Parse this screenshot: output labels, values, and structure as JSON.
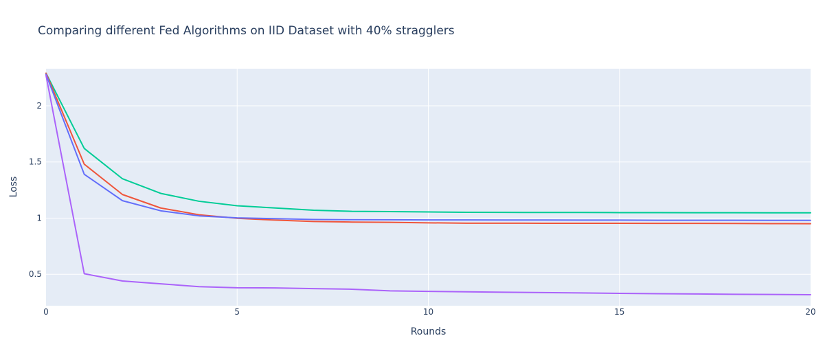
{
  "chart_data": {
    "type": "line",
    "title": "Comparing different Fed Algorithms on IID Dataset with 40% stragglers",
    "xlabel": "Rounds",
    "ylabel": "Loss",
    "xlim": [
      0,
      20
    ],
    "ylim": [
      0.22,
      2.33
    ],
    "x_ticks": [
      0,
      5,
      10,
      15,
      20
    ],
    "y_ticks": [
      0.5,
      1,
      1.5,
      2
    ],
    "x_tick_labels": [
      "0",
      "5",
      "10",
      "15",
      "20"
    ],
    "y_tick_labels": [
      "0.5",
      "1",
      "1.5",
      "2"
    ],
    "grid": true,
    "legend": "none",
    "x": [
      0,
      1,
      2,
      3,
      4,
      5,
      6,
      7,
      8,
      9,
      10,
      11,
      12,
      13,
      14,
      15,
      16,
      17,
      18,
      19,
      20
    ],
    "series": [
      {
        "color": "#00cc96",
        "values": [
          2.29,
          1.62,
          1.35,
          1.22,
          1.15,
          1.11,
          1.09,
          1.07,
          1.06,
          1.058,
          1.055,
          1.052,
          1.051,
          1.05,
          1.05,
          1.049,
          1.049,
          1.048,
          1.048,
          1.047,
          1.047
        ]
      },
      {
        "color": "#ef553b",
        "values": [
          2.29,
          1.48,
          1.21,
          1.09,
          1.03,
          0.998,
          0.982,
          0.97,
          0.965,
          0.962,
          0.958,
          0.955,
          0.955,
          0.954,
          0.954,
          0.954,
          0.953,
          0.953,
          0.952,
          0.951,
          0.95
        ]
      },
      {
        "color": "#636efa",
        "values": [
          2.28,
          1.39,
          1.155,
          1.065,
          1.02,
          1.002,
          0.995,
          0.988,
          0.986,
          0.985,
          0.984,
          0.984,
          0.983,
          0.983,
          0.982,
          0.982,
          0.981,
          0.981,
          0.981,
          0.98,
          0.98
        ]
      },
      {
        "color": "#ab63fa",
        "values": [
          2.27,
          0.505,
          0.44,
          0.415,
          0.39,
          0.38,
          0.378,
          0.372,
          0.367,
          0.352,
          0.348,
          0.344,
          0.34,
          0.337,
          0.334,
          0.33,
          0.327,
          0.325,
          0.322,
          0.32,
          0.318
        ]
      }
    ]
  }
}
